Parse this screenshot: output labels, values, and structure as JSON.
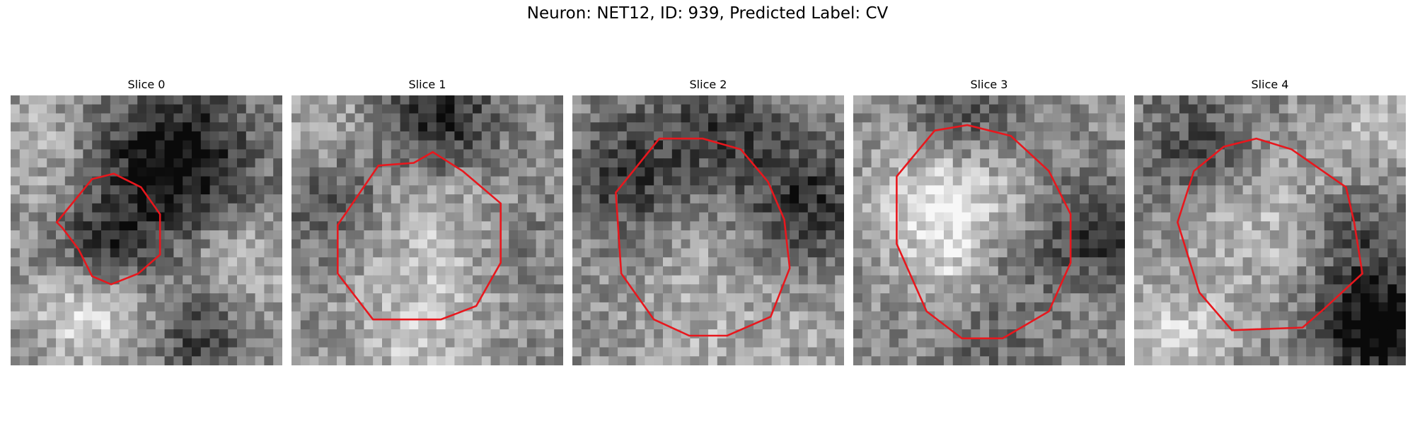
{
  "figure": {
    "title": "Neuron: NET12, ID: 939, Predicted Label: CV"
  },
  "slices": [
    {
      "label": "Slice 0",
      "seed": 11,
      "blobs": [
        [
          0.6,
          0.25,
          0.2,
          -0.55
        ],
        [
          0.35,
          0.55,
          0.12,
          -0.35
        ],
        [
          0.28,
          0.82,
          0.14,
          0.3
        ],
        [
          0.7,
          0.9,
          0.12,
          -0.3
        ],
        [
          0.85,
          0.6,
          0.14,
          0.2
        ],
        [
          0.1,
          0.2,
          0.16,
          0.15
        ]
      ],
      "contour": [
        [
          0.17,
          0.47
        ],
        [
          0.3,
          0.31
        ],
        [
          0.38,
          0.29
        ],
        [
          0.48,
          0.34
        ],
        [
          0.55,
          0.44
        ],
        [
          0.55,
          0.59
        ],
        [
          0.47,
          0.66
        ],
        [
          0.37,
          0.7
        ],
        [
          0.3,
          0.67
        ],
        [
          0.25,
          0.57
        ],
        [
          0.19,
          0.49
        ]
      ]
    },
    {
      "label": "Slice 1",
      "seed": 23,
      "blobs": [
        [
          0.55,
          0.1,
          0.15,
          -0.45
        ],
        [
          0.5,
          0.45,
          0.22,
          0.22
        ],
        [
          0.18,
          0.4,
          0.15,
          -0.25
        ],
        [
          0.45,
          0.9,
          0.16,
          0.2
        ],
        [
          0.85,
          0.55,
          0.14,
          -0.1
        ],
        [
          0.1,
          0.1,
          0.12,
          0.15
        ]
      ],
      "contour": [
        [
          0.17,
          0.48
        ],
        [
          0.32,
          0.26
        ],
        [
          0.45,
          0.25
        ],
        [
          0.52,
          0.21
        ],
        [
          0.63,
          0.28
        ],
        [
          0.77,
          0.4
        ],
        [
          0.77,
          0.62
        ],
        [
          0.68,
          0.78
        ],
        [
          0.55,
          0.83
        ],
        [
          0.3,
          0.83
        ],
        [
          0.17,
          0.66
        ]
      ]
    },
    {
      "label": "Slice 2",
      "seed": 37,
      "blobs": [
        [
          0.5,
          0.55,
          0.26,
          0.1
        ],
        [
          0.2,
          0.3,
          0.16,
          -0.35
        ],
        [
          0.85,
          0.4,
          0.16,
          -0.4
        ],
        [
          0.55,
          0.12,
          0.16,
          -0.3
        ],
        [
          0.5,
          0.9,
          0.14,
          0.1
        ],
        [
          0.9,
          0.9,
          0.12,
          0.1
        ]
      ],
      "contour": [
        [
          0.16,
          0.36
        ],
        [
          0.32,
          0.16
        ],
        [
          0.48,
          0.16
        ],
        [
          0.62,
          0.2
        ],
        [
          0.72,
          0.32
        ],
        [
          0.78,
          0.46
        ],
        [
          0.8,
          0.64
        ],
        [
          0.73,
          0.82
        ],
        [
          0.57,
          0.89
        ],
        [
          0.43,
          0.89
        ],
        [
          0.3,
          0.83
        ],
        [
          0.18,
          0.66
        ]
      ]
    },
    {
      "label": "Slice 3",
      "seed": 53,
      "blobs": [
        [
          0.35,
          0.38,
          0.18,
          0.4
        ],
        [
          0.55,
          0.6,
          0.12,
          -0.2
        ],
        [
          0.4,
          0.65,
          0.12,
          0.2
        ],
        [
          0.4,
          0.1,
          0.14,
          -0.3
        ],
        [
          0.9,
          0.5,
          0.14,
          -0.35
        ],
        [
          0.5,
          0.9,
          0.14,
          -0.15
        ]
      ],
      "contour": [
        [
          0.16,
          0.3
        ],
        [
          0.3,
          0.13
        ],
        [
          0.42,
          0.11
        ],
        [
          0.58,
          0.15
        ],
        [
          0.72,
          0.28
        ],
        [
          0.8,
          0.44
        ],
        [
          0.8,
          0.62
        ],
        [
          0.72,
          0.8
        ],
        [
          0.55,
          0.9
        ],
        [
          0.4,
          0.9
        ],
        [
          0.27,
          0.8
        ],
        [
          0.16,
          0.55
        ]
      ]
    },
    {
      "label": "Slice 4",
      "seed": 71,
      "blobs": [
        [
          0.45,
          0.45,
          0.22,
          0.2
        ],
        [
          0.9,
          0.85,
          0.16,
          -0.6
        ],
        [
          0.25,
          0.2,
          0.16,
          -0.3
        ],
        [
          0.8,
          0.5,
          0.12,
          -0.25
        ],
        [
          0.15,
          0.9,
          0.14,
          0.25
        ],
        [
          0.9,
          0.1,
          0.12,
          0.2
        ]
      ],
      "contour": [
        [
          0.16,
          0.47
        ],
        [
          0.22,
          0.28
        ],
        [
          0.33,
          0.19
        ],
        [
          0.45,
          0.16
        ],
        [
          0.58,
          0.2
        ],
        [
          0.78,
          0.34
        ],
        [
          0.81,
          0.47
        ],
        [
          0.84,
          0.66
        ],
        [
          0.7,
          0.79
        ],
        [
          0.62,
          0.86
        ],
        [
          0.36,
          0.87
        ],
        [
          0.24,
          0.73
        ]
      ]
    }
  ],
  "style": {
    "contour_color": "#e8171d"
  }
}
